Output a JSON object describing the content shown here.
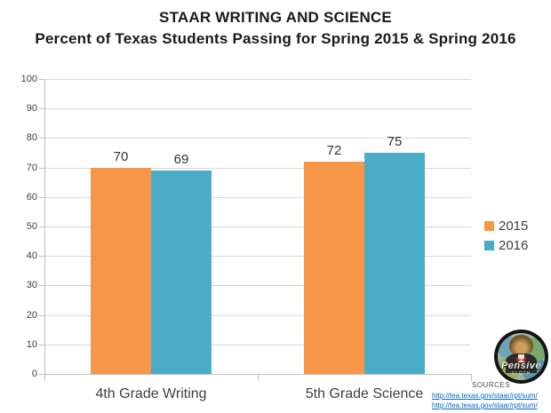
{
  "title": {
    "line1": "STAAR WRITING AND SCIENCE",
    "line2": "Percent of Texas Students Passing for Spring 2015 & Spring 2016"
  },
  "chart_data": {
    "type": "bar",
    "title": "STAAR WRITING AND SCIENCE — Percent of Texas Students Passing for Spring 2015 & Spring 2016",
    "categories": [
      "4th Grade Writing",
      "5th Grade Science"
    ],
    "series": [
      {
        "name": "2015",
        "color": "#F79646",
        "values": [
          70,
          72
        ]
      },
      {
        "name": "2016",
        "color": "#4BACC6",
        "values": [
          69,
          75
        ]
      }
    ],
    "xlabel": "",
    "ylabel": "",
    "ylim": [
      0,
      100
    ],
    "yticks": [
      0,
      10,
      20,
      30,
      40,
      50,
      60,
      70,
      80,
      90,
      100
    ],
    "grid": true,
    "data_labels": true,
    "legend_position": "right-middle"
  },
  "footer": {
    "sources_label": "SOURCES",
    "links": [
      "http://tea.texas.gov/staar/rpt/sum/",
      "http://tea.texas.gov/staar/rpt/sum/"
    ]
  },
  "logo": {
    "top_text": "the",
    "main_text": "Pensive",
    "bottom_text": "SLOTH"
  },
  "colors": {
    "series_2015": "#F79646",
    "series_2016": "#4BACC6",
    "gridline": "#D9D9D9",
    "axis": "#BFBFBF",
    "text": "#404040",
    "link": "#0563C1"
  }
}
